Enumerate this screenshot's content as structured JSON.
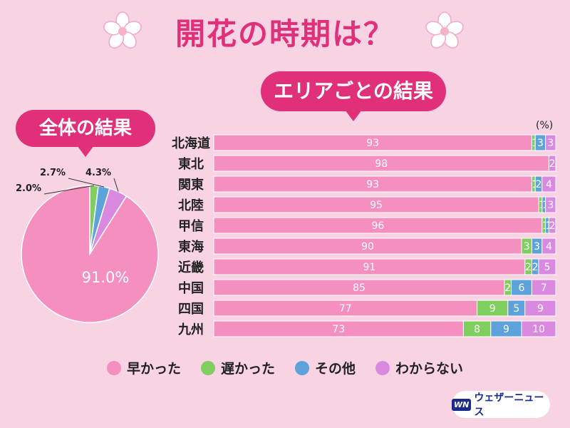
{
  "title": "開花の時期は？",
  "area_heading": "エリアごとの結果",
  "overall_heading": "全体の結果",
  "unit_label": "(%)",
  "colors": {
    "early": "#f58fc0",
    "late": "#7fcf5f",
    "other": "#5ea2dc",
    "unknown": "#d98ae0",
    "accent": "#e0307a",
    "background": "#f8d3e3"
  },
  "legend": [
    {
      "label": "早かった",
      "color": "#f58fc0"
    },
    {
      "label": "遅かった",
      "color": "#7fcf5f"
    },
    {
      "label": "その他",
      "color": "#5ea2dc"
    },
    {
      "label": "わからない",
      "color": "#d98ae0"
    }
  ],
  "logo": {
    "mark": "WN",
    "text": "ウェザーニュース"
  },
  "chart_data": [
    {
      "type": "pie",
      "title": "全体の結果",
      "slices": [
        {
          "name": "早かった",
          "value": 91.0,
          "label": "91.0%"
        },
        {
          "name": "遅かった",
          "value": 2.0,
          "label": "2.0%"
        },
        {
          "name": "その他",
          "value": 2.7,
          "label": "2.7%"
        },
        {
          "name": "わからない",
          "value": 4.3,
          "label": "4.3%"
        }
      ]
    },
    {
      "type": "bar",
      "orientation": "horizontal",
      "stacked": true,
      "title": "エリアごとの結果",
      "unit": "(%)",
      "categories": [
        "北海道",
        "東北",
        "関東",
        "北陸",
        "甲信",
        "東海",
        "近畿",
        "中国",
        "四国",
        "九州"
      ],
      "series": [
        {
          "name": "早かった",
          "values": [
            93,
            98,
            93,
            95,
            96,
            90,
            91,
            85,
            77,
            73
          ]
        },
        {
          "name": "遅かった",
          "values": [
            1,
            0,
            1,
            1,
            1,
            3,
            2,
            2,
            9,
            8
          ]
        },
        {
          "name": "その他",
          "values": [
            3,
            0,
            2,
            1,
            1,
            3,
            2,
            6,
            5,
            9
          ]
        },
        {
          "name": "わからない",
          "values": [
            3,
            2,
            4,
            3,
            2,
            4,
            5,
            7,
            9,
            10
          ]
        }
      ]
    }
  ]
}
